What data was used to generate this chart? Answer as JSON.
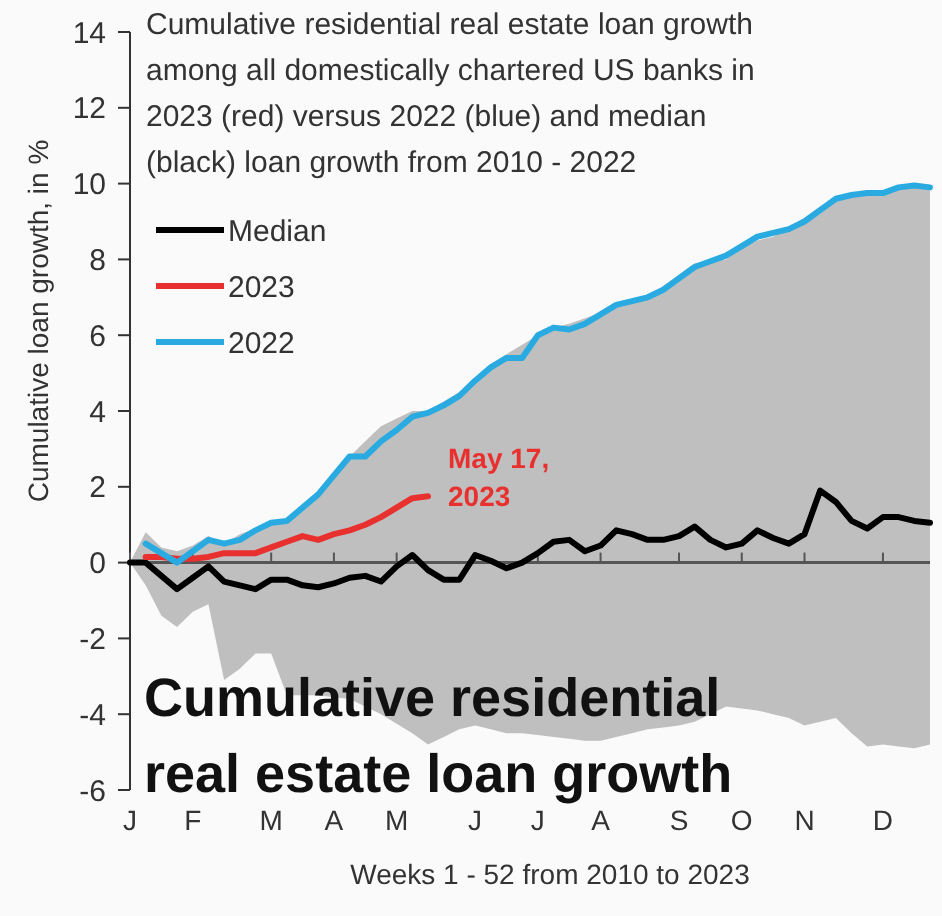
{
  "chart_data": {
    "type": "line",
    "title": "Cumulative residential real estate loan growth among all domestically chartered US banks in 2023 (red) versus 2022 (blue) and median (black) loan growth from 2010 - 2022",
    "xlabel": "Weeks 1 - 52 from 2010 to 2023",
    "ylabel": "Cumulative loan growth, in %",
    "categories": [
      "J",
      null,
      null,
      null,
      "F",
      null,
      null,
      null,
      null,
      "M",
      null,
      null,
      null,
      "A",
      null,
      null,
      null,
      "M",
      null,
      null,
      null,
      null,
      "J",
      null,
      null,
      null,
      "J",
      null,
      null,
      null,
      "A",
      null,
      null,
      null,
      null,
      "S",
      null,
      null,
      null,
      "O",
      null,
      null,
      null,
      "N",
      null,
      null,
      null,
      null,
      "D",
      null,
      null,
      null
    ],
    "ylim": [
      -6,
      14
    ],
    "yticks": [
      -6,
      -4,
      -2,
      0,
      2,
      4,
      6,
      8,
      10,
      12,
      14
    ],
    "legend": "top left",
    "series": [
      {
        "name": "Median",
        "color": "#000000",
        "values": [
          0,
          0,
          -0.35,
          -0.7,
          -0.4,
          -0.1,
          -0.5,
          -0.6,
          -0.7,
          -0.45,
          -0.45,
          -0.6,
          -0.65,
          -0.55,
          -0.4,
          -0.35,
          -0.5,
          -0.1,
          0.2,
          -0.2,
          -0.45,
          -0.45,
          0.2,
          0.05,
          -0.15,
          0,
          0.25,
          0.55,
          0.6,
          0.3,
          0.45,
          0.85,
          0.75,
          0.6,
          0.6,
          0.7,
          0.95,
          0.6,
          0.4,
          0.5,
          0.85,
          0.65,
          0.5,
          0.75,
          1.9,
          1.6,
          1.1,
          0.9,
          1.2,
          1.2,
          1.1,
          1.05
        ],
        "upper": [
          0,
          0.8,
          0.4,
          0.3,
          0.45,
          0.7,
          0.5,
          0.75,
          0.9,
          1.1,
          1.1,
          1.45,
          1.8,
          2.3,
          2.8,
          3.2,
          3.6,
          3.8,
          4.0,
          4.0,
          4.25,
          4.5,
          4.8,
          5.15,
          5.5,
          5.75,
          6.0,
          6.2,
          6.3,
          6.45,
          6.6,
          6.75,
          6.85,
          7.0,
          7.3,
          7.6,
          7.9,
          7.95,
          8.0,
          8.3,
          8.5,
          8.6,
          8.85,
          9.1,
          9.4,
          9.6,
          9.7,
          9.75,
          9.8,
          9.9,
          10.0,
          9.9
        ],
        "lower": [
          0,
          -0.6,
          -1.4,
          -1.7,
          -1.3,
          -1.1,
          -3.1,
          -2.8,
          -2.4,
          -2.4,
          -3.5,
          -3.5,
          -3.5,
          -3.55,
          -3.6,
          -3.8,
          -4.0,
          -4.25,
          -4.5,
          -4.8,
          -4.6,
          -4.4,
          -4.3,
          -4.4,
          -4.5,
          -4.5,
          -4.55,
          -4.6,
          -4.65,
          -4.7,
          -4.7,
          -4.6,
          -4.5,
          -4.4,
          -4.35,
          -4.3,
          -4.2,
          -4.0,
          -3.8,
          -3.85,
          -3.9,
          -4.0,
          -4.1,
          -4.3,
          -4.2,
          -4.1,
          -4.5,
          -4.85,
          -4.8,
          -4.85,
          -4.9,
          -4.8
        ]
      },
      {
        "name": "2023",
        "color": "#e8312f",
        "values": [
          null,
          0.15,
          0.15,
          0.1,
          0.1,
          0.15,
          0.25,
          0.25,
          0.25,
          0.4,
          0.55,
          0.7,
          0.6,
          0.75,
          0.85,
          1.0,
          1.2,
          1.45,
          1.7,
          1.75,
          null,
          null,
          null,
          null,
          null,
          null,
          null,
          null,
          null,
          null,
          null,
          null,
          null,
          null,
          null,
          null,
          null,
          null,
          null,
          null,
          null,
          null,
          null,
          null,
          null,
          null,
          null,
          null,
          null,
          null,
          null,
          null
        ]
      },
      {
        "name": "2022",
        "color": "#29abe2",
        "values": [
          null,
          0.5,
          0.25,
          0,
          0.3,
          0.6,
          0.5,
          0.6,
          0.85,
          1.05,
          1.1,
          1.45,
          1.8,
          2.3,
          2.8,
          2.8,
          3.2,
          3.5,
          3.85,
          3.95,
          4.15,
          4.4,
          4.8,
          5.15,
          5.4,
          5.4,
          6.0,
          6.2,
          6.15,
          6.3,
          6.55,
          6.8,
          6.9,
          7.0,
          7.2,
          7.5,
          7.8,
          7.95,
          8.1,
          8.35,
          8.6,
          8.7,
          8.8,
          9.0,
          9.3,
          9.6,
          9.7,
          9.75,
          9.75,
          9.9,
          9.95,
          9.9
        ]
      }
    ],
    "annotations": [
      "May 17, 2023",
      "Cumulative residential real estate loan growth"
    ]
  }
}
